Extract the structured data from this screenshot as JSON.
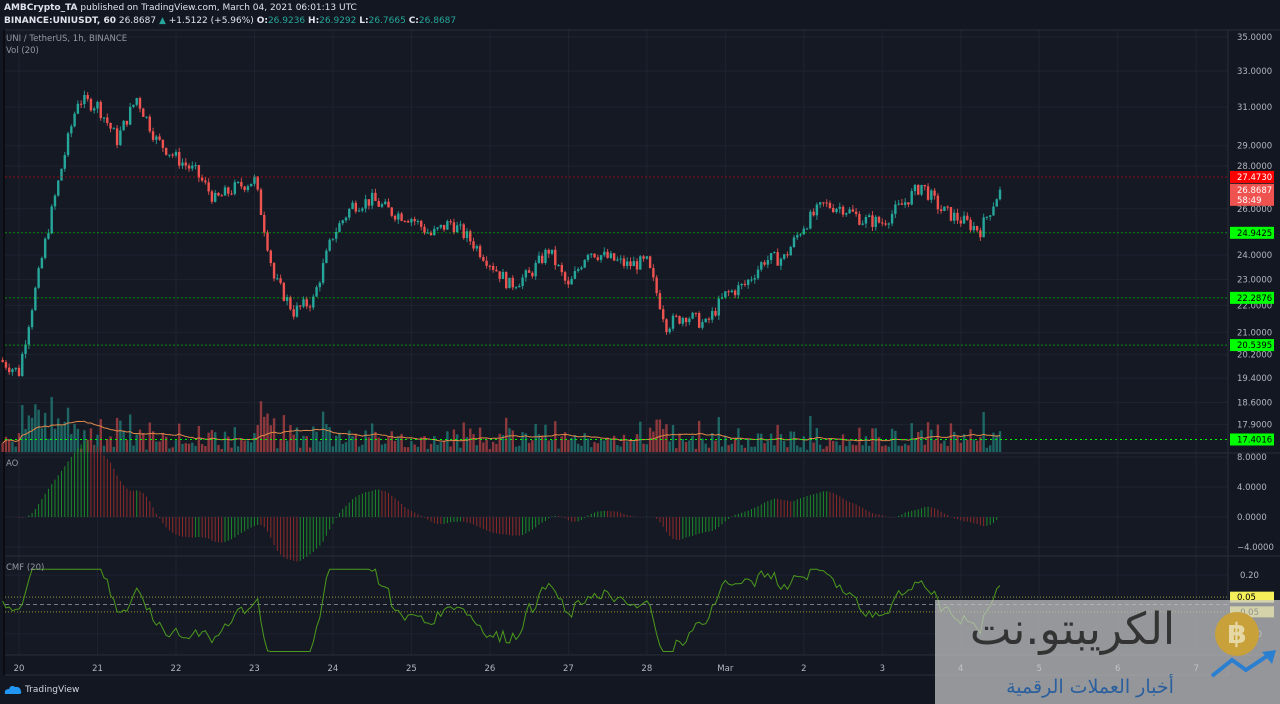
{
  "header": {
    "publisher": "AMBCrypto_TA",
    "published_text": "published on TradingView.com, March 04, 2021 06:01:13 UTC",
    "symbol": "BINANCE:UNIUSDT, 60",
    "last": "26.8687",
    "change": "+1.5122 (+5.96%)",
    "o_label": "O:",
    "o": "26.9236",
    "h_label": "H:",
    "h": "26.9292",
    "l_label": "L:",
    "l": "26.7665",
    "c_label": "C:",
    "c": "26.8687"
  },
  "panes": {
    "main_title": "UNI / TetherUS, 1h, BINANCE",
    "volume_title": "Vol (20)",
    "ao_title": "AO",
    "cmf_title": "CMF (20)"
  },
  "colors": {
    "up": "#26a69a",
    "down": "#ef5350",
    "background": "#131722",
    "level_red": "#ff0000",
    "level_green": "#00ff00",
    "vol_ma": "#e08a4a",
    "ao_up": "#1b8a2a",
    "ao_down": "#8c2a2a",
    "cmf": "#4c9a1c",
    "cmf_band": "#e8e84a"
  },
  "chart_data": {
    "type": "candlestick",
    "title": "UNI / TetherUS, 1h, BINANCE",
    "scale": "log",
    "grid": true,
    "ylim": [
      17.2,
      35.5
    ],
    "interval": "6h",
    "start": "2021-02-19 18:00",
    "closes": [
      20.02,
      19.6,
      23.18,
      27.2,
      31.39,
      31.1,
      29.29,
      31.5,
      29.29,
      28.4,
      27.7,
      26.4,
      26.95,
      27.33,
      23.05,
      21.76,
      22.2,
      24.85,
      26.17,
      26.4,
      25.85,
      25.6,
      24.85,
      25.4,
      24.63,
      23.7,
      22.79,
      23.18,
      24.21,
      22.67,
      24.21,
      23.88,
      23.59,
      23.7,
      21.27,
      21.64,
      21.27,
      22.4,
      22.79,
      23.8,
      23.88,
      25.28,
      26.17,
      26.06,
      25.5,
      25.4,
      26.17,
      27.09,
      25.95,
      25.5,
      25.06,
      26.87
    ],
    "price_ticks": [
      "35.0000",
      "33.0000",
      "31.0000",
      "29.0000",
      "28.0000",
      "26.0000",
      "24.0000",
      "23.0000",
      "22.0000",
      "21.0000",
      "20.2000",
      "19.4000",
      "18.6000",
      "17.9000"
    ],
    "price_tick_values": [
      35,
      33,
      31,
      29,
      28,
      26,
      24,
      23,
      22,
      21,
      20.2,
      19.4,
      18.6,
      17.9
    ],
    "levels": [
      {
        "value": 27.473,
        "label": "27.4730",
        "color": "#ff0000"
      },
      {
        "value": 24.9425,
        "label": "24.9425",
        "color": "#00ff00"
      },
      {
        "value": 22.2876,
        "label": "22.2876",
        "color": "#00ff00"
      },
      {
        "value": 20.5395,
        "label": "20.5395",
        "color": "#00ff00"
      }
    ],
    "last_price": {
      "value": 26.8687,
      "label": "26.8687",
      "countdown": "58:49"
    },
    "volume_ma_label": "17.4016",
    "ao_ticks": [
      "8.0000",
      "4.0000",
      "0.0000",
      "−4.0000"
    ],
    "ao_tick_values": [
      8,
      4,
      0,
      -4
    ],
    "cmf_ticks": [
      "0.20",
      "-0.20"
    ],
    "cmf_tick_values": [
      0.2,
      -0.2
    ],
    "cmf_bands": [
      {
        "value": 0.05,
        "label": "0.05"
      },
      {
        "value": -0.05,
        "label": "-0.05"
      }
    ],
    "x_ticks": [
      "20",
      "21",
      "22",
      "23",
      "24",
      "25",
      "26",
      "27",
      "28",
      "Mar",
      "2",
      "3",
      "4",
      "5",
      "6",
      "7"
    ]
  },
  "footer": {
    "brand": "TradingView"
  },
  "watermark": {
    "title": "الكريبتو.نت",
    "subtitle": "أخبار العملات الرقمية"
  }
}
